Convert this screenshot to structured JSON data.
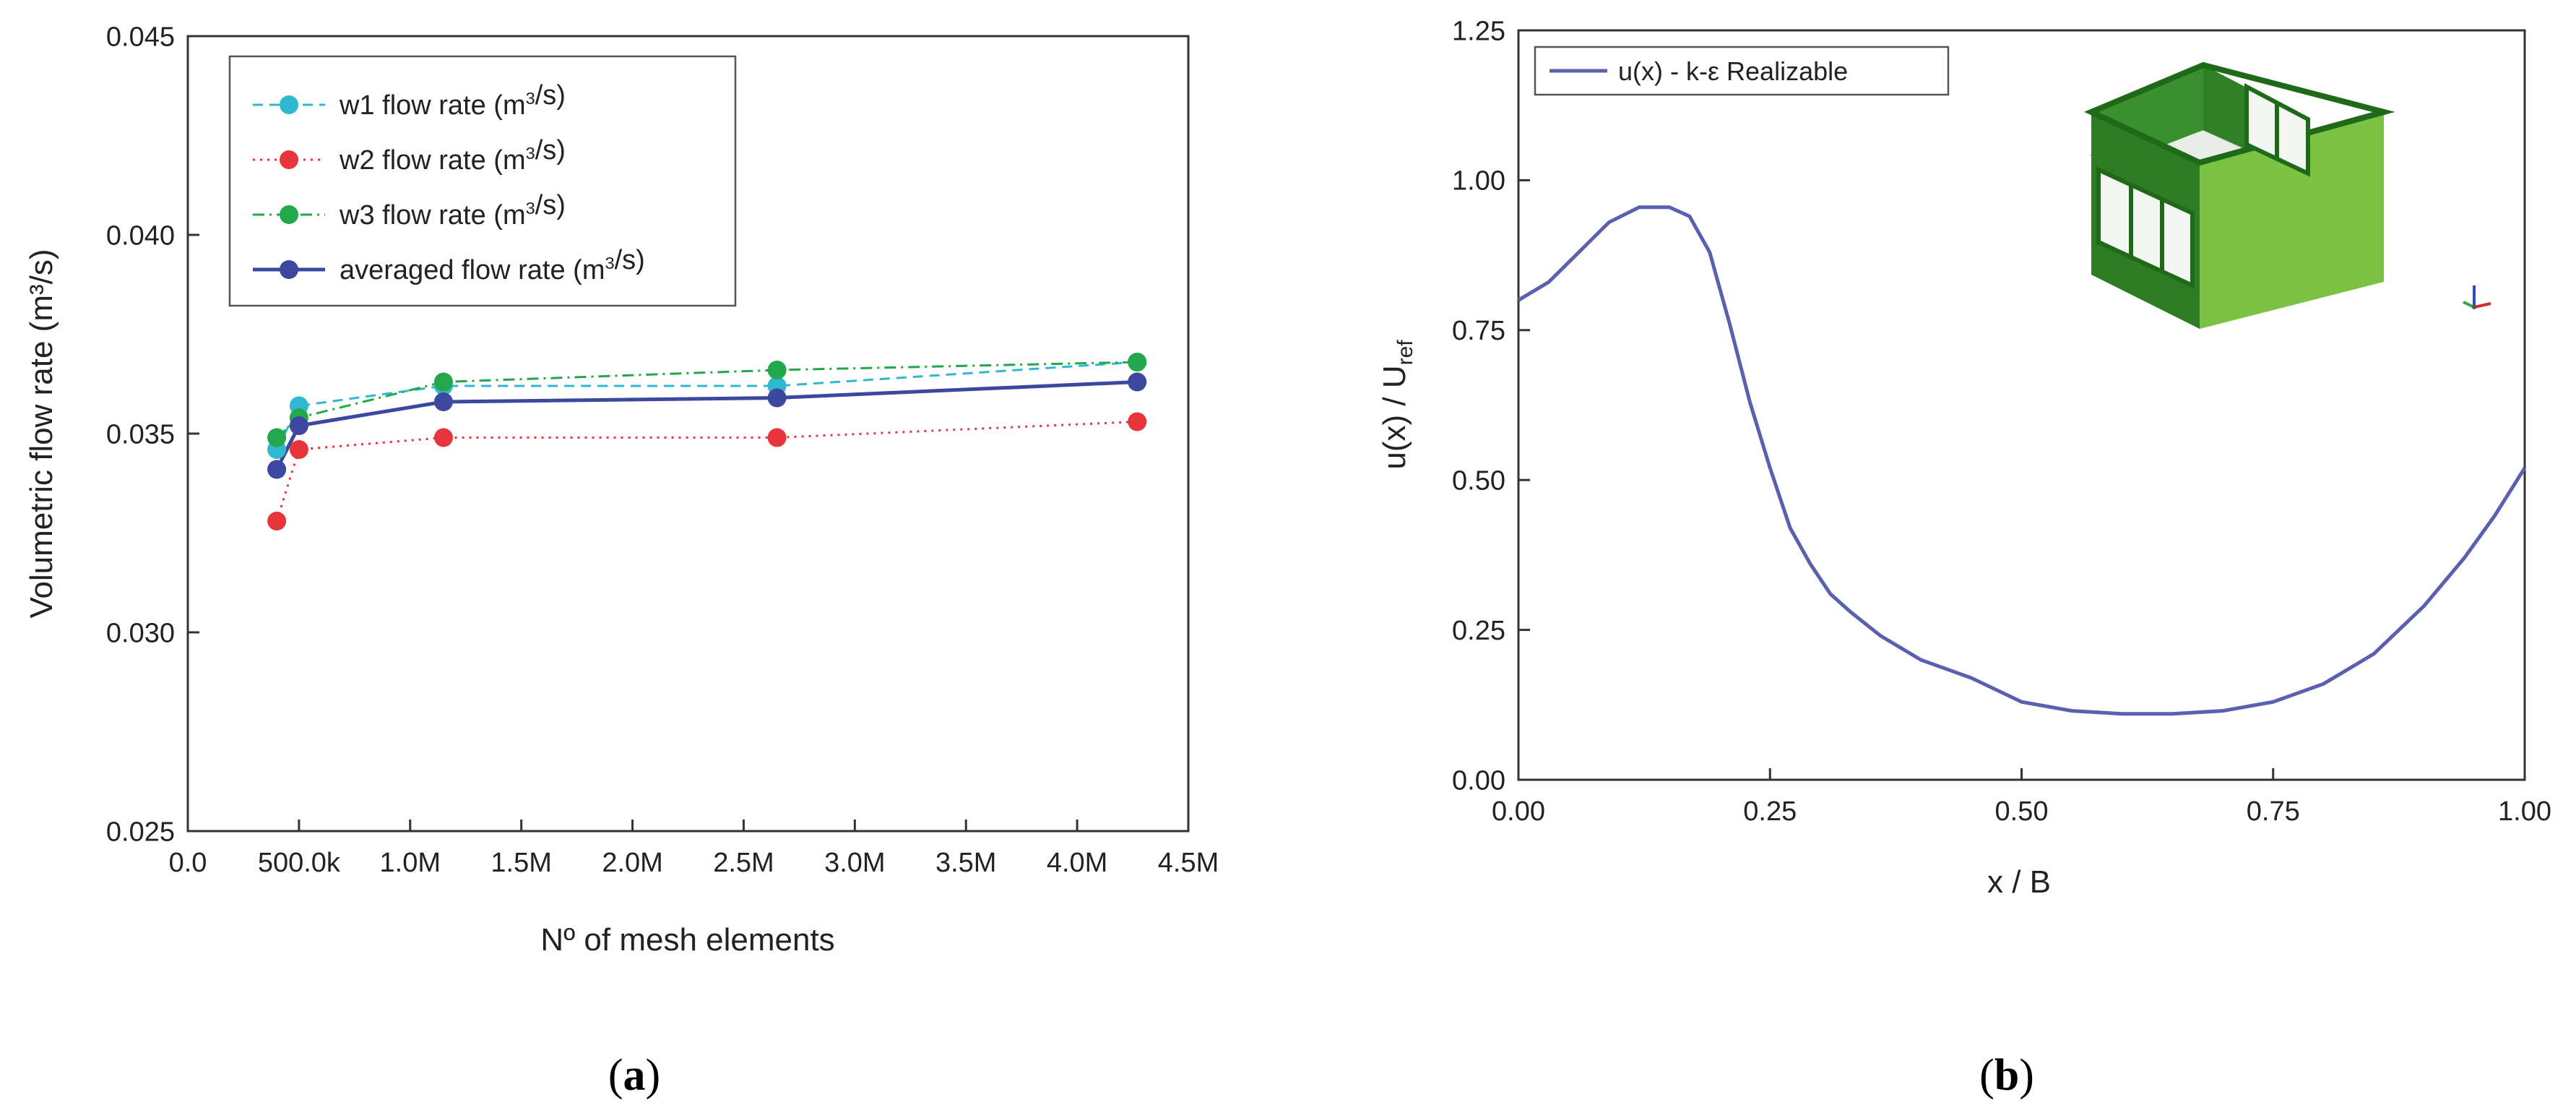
{
  "panels": [
    {
      "label_open": "(",
      "label_letter": "a",
      "label_close": ")"
    },
    {
      "label_open": "(",
      "label_letter": "b",
      "label_close": ")"
    }
  ],
  "chart_data": [
    {
      "type": "line",
      "title": "",
      "xlabel": "Nº of mesh elements",
      "ylabel": "Volumetric flow rate (m³/s)",
      "xlim": [
        0,
        4500000
      ],
      "ylim": [
        0.025,
        0.045
      ],
      "x_ticks": [
        0,
        500000,
        1000000,
        1500000,
        2000000,
        2500000,
        3000000,
        3500000,
        4000000,
        4500000
      ],
      "x_tick_labels": [
        "0.0",
        "500.0k",
        "1.0M",
        "1.5M",
        "2.0M",
        "2.5M",
        "3.0M",
        "3.5M",
        "4.0M",
        "4.5M"
      ],
      "y_ticks": [
        0.025,
        0.03,
        0.035,
        0.04,
        0.045
      ],
      "y_tick_labels": [
        "0.025",
        "0.030",
        "0.035",
        "0.040",
        "0.045"
      ],
      "grid": false,
      "legend_position": "top-left",
      "x": [
        400000,
        500000,
        1150000,
        2650000,
        4270000
      ],
      "series": [
        {
          "name": "w1 flow rate (m³/s)",
          "color": "#2fb8d0",
          "line": "dashed",
          "values": [
            0.0346,
            0.0357,
            0.0362,
            0.0362,
            0.0368
          ]
        },
        {
          "name": "w2 flow rate (m³/s)",
          "color": "#e8343b",
          "line": "dotted",
          "values": [
            0.0328,
            0.0346,
            0.0349,
            0.0349,
            0.0353
          ]
        },
        {
          "name": "w3 flow rate (m³/s)",
          "color": "#22a84a",
          "line": "dashdot",
          "values": [
            0.0349,
            0.0354,
            0.0363,
            0.0366,
            0.0368
          ]
        },
        {
          "name": "averaged flow rate (m³/s)",
          "color": "#3c48a0",
          "line": "solid",
          "values": [
            0.0341,
            0.0352,
            0.0358,
            0.0359,
            0.0363
          ]
        }
      ]
    },
    {
      "type": "line",
      "title": "",
      "xlabel": "x / B",
      "ylabel": "u(x) / U_ref",
      "xlim": [
        0,
        1
      ],
      "ylim": [
        0,
        1.25
      ],
      "x_ticks": [
        0,
        0.25,
        0.5,
        0.75,
        1.0
      ],
      "x_tick_labels": [
        "0.00",
        "0.25",
        "0.50",
        "0.75",
        "1.00"
      ],
      "y_ticks": [
        0,
        0.25,
        0.5,
        0.75,
        1.0,
        1.25
      ],
      "y_tick_labels": [
        "0.00",
        "0.25",
        "0.50",
        "0.75",
        "1.00",
        "1.25"
      ],
      "grid": false,
      "legend_position": "top-left",
      "series": [
        {
          "name": "u(x) - k-ε Realizable",
          "color": "#5a5fb0",
          "line": "solid",
          "x": [
            0,
            0.03,
            0.06,
            0.09,
            0.12,
            0.15,
            0.17,
            0.19,
            0.21,
            0.23,
            0.25,
            0.27,
            0.29,
            0.31,
            0.33,
            0.36,
            0.4,
            0.45,
            0.5,
            0.55,
            0.6,
            0.65,
            0.7,
            0.75,
            0.8,
            0.85,
            0.9,
            0.94,
            0.97,
            1.0
          ],
          "values": [
            0.8,
            0.83,
            0.88,
            0.93,
            0.955,
            0.955,
            0.94,
            0.88,
            0.76,
            0.63,
            0.52,
            0.42,
            0.36,
            0.31,
            0.28,
            0.24,
            0.2,
            0.17,
            0.13,
            0.115,
            0.11,
            0.11,
            0.115,
            0.13,
            0.16,
            0.21,
            0.29,
            0.37,
            0.44,
            0.52
          ]
        }
      ]
    }
  ]
}
